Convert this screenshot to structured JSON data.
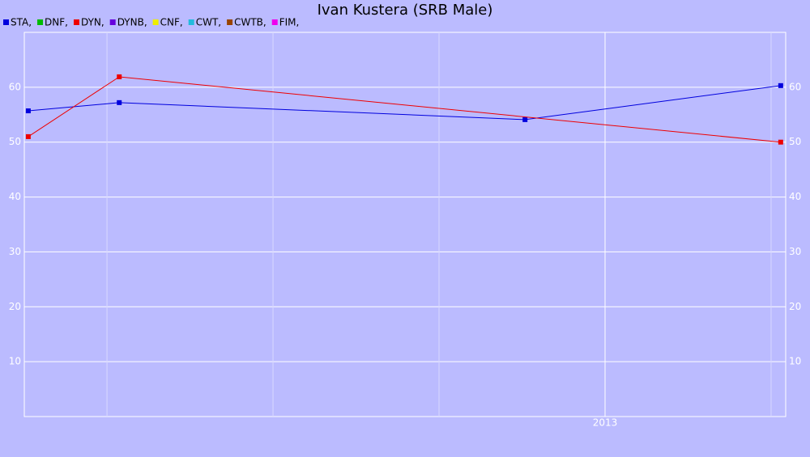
{
  "chart_data": {
    "type": "line",
    "title": "Ivan Kustera (SRB Male)",
    "series": [
      {
        "name": "STA,",
        "color": "#0000dd",
        "x": [
          2011.263,
          2011.537,
          2012.759,
          2013.529
        ],
        "values": [
          55.7,
          57.2,
          54.1,
          60.3
        ]
      },
      {
        "name": "DNF,",
        "color": "#00bb00",
        "x": [],
        "values": []
      },
      {
        "name": "DYN,",
        "color": "#ee0000",
        "x": [
          2011.263,
          2011.537,
          2013.529
        ],
        "values": [
          51.0,
          61.9,
          50.0
        ]
      },
      {
        "name": "DYNB,",
        "color": "#6600dd",
        "x": [],
        "values": []
      },
      {
        "name": "CNF,",
        "color": "#eeee00",
        "x": [],
        "values": []
      },
      {
        "name": "CWT,",
        "color": "#22bbdd",
        "x": [],
        "values": []
      },
      {
        "name": "CWTB,",
        "color": "#994400",
        "x": [],
        "values": []
      },
      {
        "name": "FIM,",
        "color": "#ee00ee",
        "x": [],
        "values": []
      }
    ],
    "xlim": [
      2011.251,
      2013.544
    ],
    "xticks": [
      {
        "value": 2011.5,
        "label": null
      },
      {
        "value": 2012.0,
        "label": null
      },
      {
        "value": 2012.5,
        "label": null
      },
      2013,
      {
        "value": 2013.5,
        "label": null
      }
    ],
    "ylim": [
      0,
      70
    ],
    "yticks": [
      10,
      20,
      30,
      40,
      50,
      60
    ],
    "grid": true
  }
}
